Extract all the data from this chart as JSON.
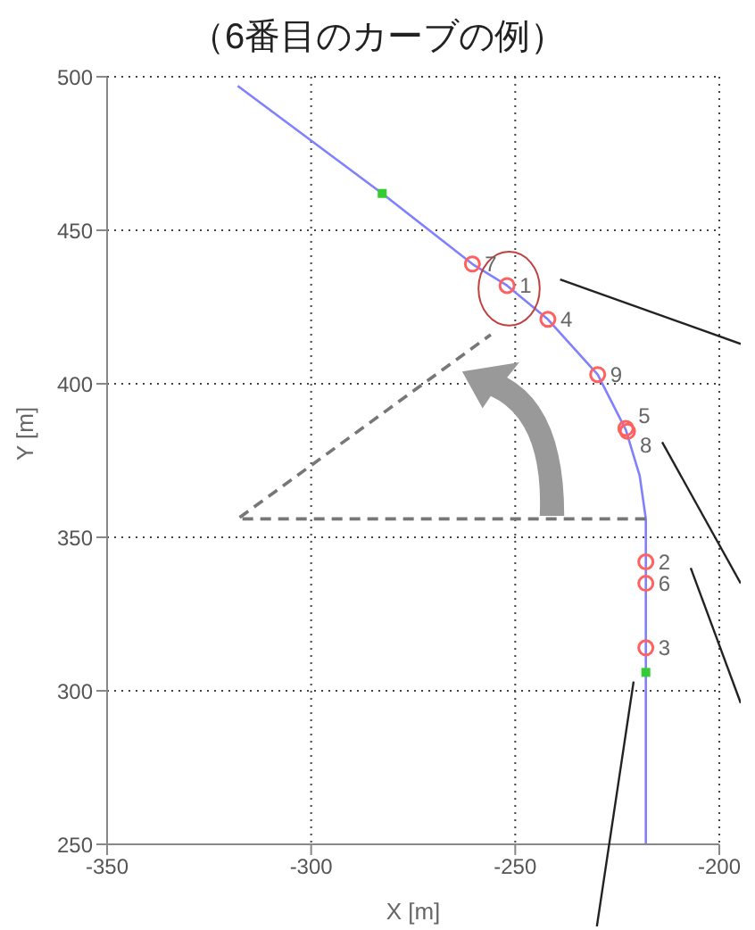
{
  "chart_data": {
    "type": "scatter",
    "title": "（6番目のカーブの例）",
    "xlabel": "X [m]",
    "ylabel": "Y [m]",
    "xlim": [
      -350,
      -200
    ],
    "ylim": [
      250,
      500
    ],
    "xticks": [
      -350,
      -300,
      -250,
      -200
    ],
    "yticks": [
      250,
      300,
      350,
      400,
      450,
      500
    ],
    "grid": true,
    "series": [
      {
        "type": "line",
        "color": "#8080ff",
        "marker": "none",
        "line_style": "solid",
        "x": [
          -318,
          -282.6,
          -260.5,
          -252,
          -242,
          -229.8,
          -222.9,
          -219.5,
          -218,
          -218
        ],
        "values": [
          497,
          462,
          439,
          432,
          421,
          403,
          385,
          370,
          356,
          250
        ]
      },
      {
        "type": "line",
        "color": "#777777",
        "marker": "none",
        "line_style": "dashed",
        "x": [
          -218,
          -318,
          -256
        ],
        "values": [
          356,
          356,
          416
        ]
      },
      {
        "color": "#ff6060",
        "marker": "circle",
        "x": [
          -260.5,
          -252,
          -242,
          -229.8,
          -222.9,
          -222.5,
          -218,
          -218,
          -218
        ],
        "values": [
          439,
          432,
          421,
          403,
          385.5,
          384.5,
          342,
          335,
          314
        ]
      },
      {
        "color": "#33cc33",
        "marker": "square",
        "x": [
          -282.6,
          -218
        ],
        "values": [
          462,
          306
        ]
      }
    ],
    "annotations": [
      {
        "text": "7",
        "x": -260.5,
        "y": 439
      },
      {
        "text": "1",
        "x": -252,
        "y": 432
      },
      {
        "text": "4",
        "x": -242,
        "y": 421
      },
      {
        "text": "9",
        "x": -229.8,
        "y": 403
      },
      {
        "text": "5",
        "x": -222.9,
        "y": 385.5
      },
      {
        "text": "8",
        "x": -222.5,
        "y": 384.5
      },
      {
        "text": "2",
        "x": -218,
        "y": 342
      },
      {
        "text": "6",
        "x": -218,
        "y": 335
      },
      {
        "text": "3",
        "x": -218,
        "y": 314
      }
    ]
  }
}
